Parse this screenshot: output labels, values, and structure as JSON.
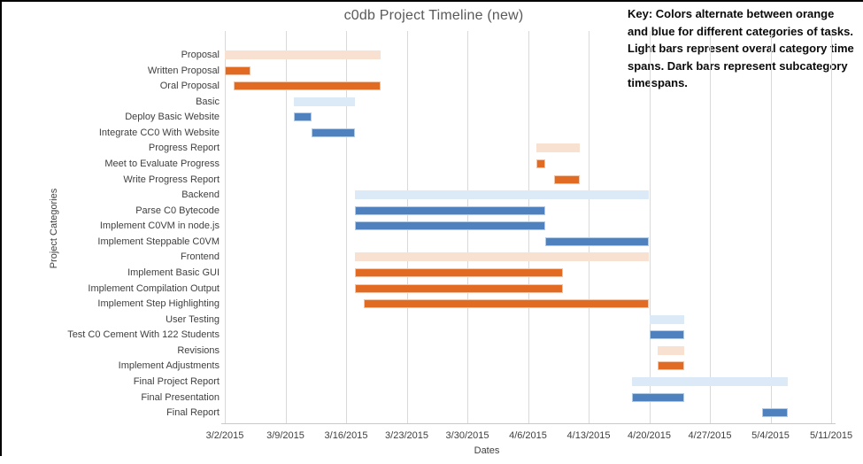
{
  "key_note": "Key: Colors alternate between orange and blue for different categories of tasks. Light bars represent overal category time spans. Dark bars represent subcategory timespans.",
  "colors": {
    "dark_orange": "#e26b24",
    "dark_orange_border": "#f3c5a6",
    "light_orange": "#f9e1d2",
    "dark_blue": "#4e81bd",
    "dark_blue_border": "#afcbe8",
    "light_blue": "#dce9f7",
    "gridline": "#d9d9d9",
    "axis_text": "#404040",
    "title_text": "#595959"
  },
  "chart_data": {
    "type": "bar",
    "variant": "gantt",
    "title": "c0db Project Timeline (new)",
    "xlabel": "Dates",
    "ylabel": "Project Categories",
    "grid": true,
    "x_ticks": [
      "3/2/2015",
      "3/9/2015",
      "3/16/2015",
      "3/23/2015",
      "3/30/2015",
      "4/6/2015",
      "4/13/2015",
      "4/20/2015",
      "4/27/2015",
      "5/4/2015",
      "5/11/2015"
    ],
    "x_axis_start": "3/2/2015",
    "x_axis_end": "5/11/2015",
    "tasks": [
      {
        "label": "Proposal",
        "shade": "light_orange",
        "start": "3/2/2015",
        "end": "3/20/2015",
        "start_day": 0,
        "end_day": 18
      },
      {
        "label": "Written Proposal",
        "shade": "dark_orange",
        "start": "3/2/2015",
        "end": "3/5/2015",
        "start_day": 0,
        "end_day": 3
      },
      {
        "label": "Oral Proposal",
        "shade": "dark_orange",
        "start": "3/3/2015",
        "end": "3/20/2015",
        "start_day": 1,
        "end_day": 18
      },
      {
        "label": "Basic",
        "shade": "light_blue",
        "start": "3/10/2015",
        "end": "3/17/2015",
        "start_day": 8,
        "end_day": 15
      },
      {
        "label": "Deploy Basic Website",
        "shade": "dark_blue",
        "start": "3/10/2015",
        "end": "3/12/2015",
        "start_day": 8,
        "end_day": 10
      },
      {
        "label": "Integrate CC0 With Website",
        "shade": "dark_blue",
        "start": "3/12/2015",
        "end": "3/17/2015",
        "start_day": 10,
        "end_day": 15
      },
      {
        "label": "Progress Report",
        "shade": "light_orange",
        "start": "4/7/2015",
        "end": "4/12/2015",
        "start_day": 36,
        "end_day": 41
      },
      {
        "label": "Meet to Evaluate Progress",
        "shade": "dark_orange",
        "start": "4/7/2015",
        "end": "4/8/2015",
        "start_day": 36,
        "end_day": 37
      },
      {
        "label": "Write Progress Report",
        "shade": "dark_orange",
        "start": "4/9/2015",
        "end": "4/12/2015",
        "start_day": 38,
        "end_day": 41
      },
      {
        "label": "Backend",
        "shade": "light_blue",
        "start": "3/17/2015",
        "end": "4/20/2015",
        "start_day": 15,
        "end_day": 49
      },
      {
        "label": "Parse C0 Bytecode",
        "shade": "dark_blue",
        "start": "3/17/2015",
        "end": "4/8/2015",
        "start_day": 15,
        "end_day": 37
      },
      {
        "label": "Implement C0VM in node.js",
        "shade": "dark_blue",
        "start": "3/17/2015",
        "end": "4/8/2015",
        "start_day": 15,
        "end_day": 37
      },
      {
        "label": "Implement Steppable C0VM",
        "shade": "dark_blue",
        "start": "4/8/2015",
        "end": "4/20/2015",
        "start_day": 37,
        "end_day": 49
      },
      {
        "label": "Frontend",
        "shade": "light_orange",
        "start": "3/17/2015",
        "end": "4/20/2015",
        "start_day": 15,
        "end_day": 49
      },
      {
        "label": "Implement Basic GUI",
        "shade": "dark_orange",
        "start": "3/17/2015",
        "end": "4/10/2015",
        "start_day": 15,
        "end_day": 39
      },
      {
        "label": "Implement Compilation Output",
        "shade": "dark_orange",
        "start": "3/17/2015",
        "end": "4/10/2015",
        "start_day": 15,
        "end_day": 39
      },
      {
        "label": "Implement Step Highlighting",
        "shade": "dark_orange",
        "start": "3/18/2015",
        "end": "4/20/2015",
        "start_day": 16,
        "end_day": 49
      },
      {
        "label": "User Testing",
        "shade": "light_blue",
        "start": "4/20/2015",
        "end": "4/24/2015",
        "start_day": 49,
        "end_day": 53
      },
      {
        "label": "Test C0 Cement With 122 Students",
        "shade": "dark_blue",
        "start": "4/20/2015",
        "end": "4/24/2015",
        "start_day": 49,
        "end_day": 53
      },
      {
        "label": "Revisions",
        "shade": "light_orange",
        "start": "4/21/2015",
        "end": "4/24/2015",
        "start_day": 50,
        "end_day": 53
      },
      {
        "label": "Implement Adjustments",
        "shade": "dark_orange",
        "start": "4/21/2015",
        "end": "4/24/2015",
        "start_day": 50,
        "end_day": 53
      },
      {
        "label": "Final Project Report",
        "shade": "light_blue",
        "start": "4/18/2015",
        "end": "5/6/2015",
        "start_day": 47,
        "end_day": 65
      },
      {
        "label": "Final Presentation",
        "shade": "dark_blue",
        "start": "4/18/2015",
        "end": "4/24/2015",
        "start_day": 47,
        "end_day": 53
      },
      {
        "label": "Final Report",
        "shade": "dark_blue",
        "start": "5/3/2015",
        "end": "5/6/2015",
        "start_day": 62,
        "end_day": 65
      }
    ]
  }
}
